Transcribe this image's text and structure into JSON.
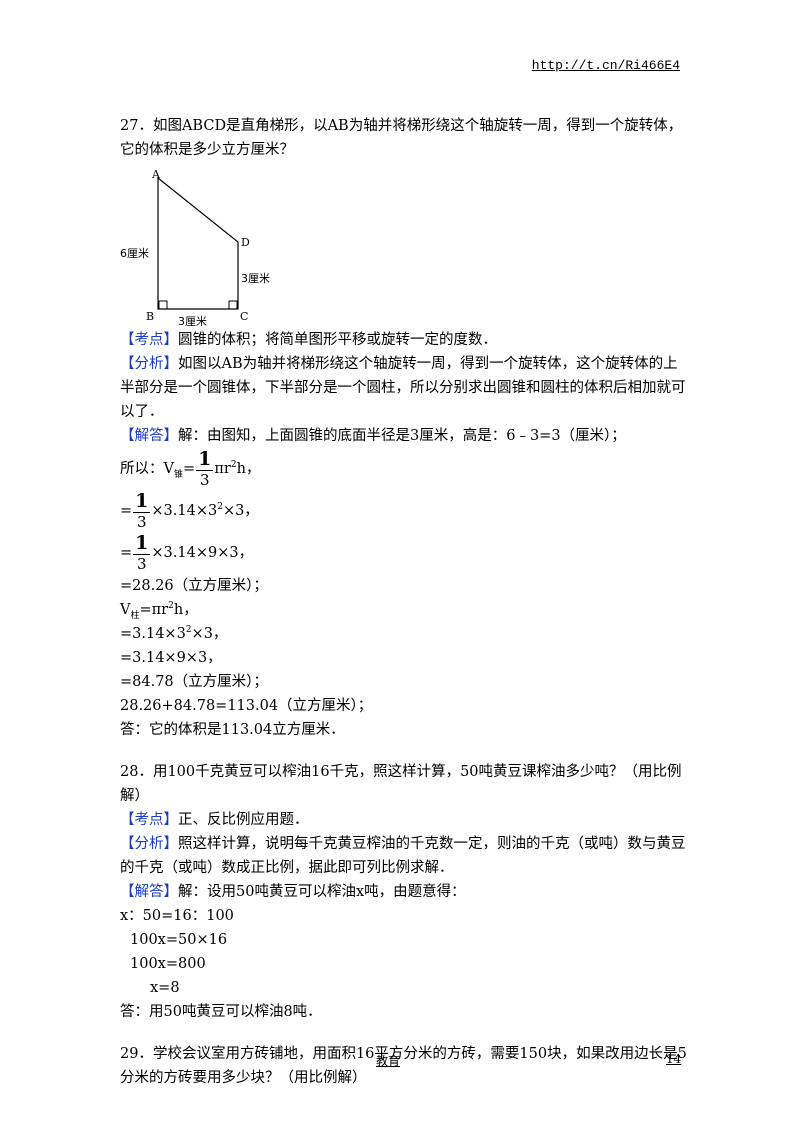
{
  "header": {
    "link": "http://t.cn/Ri466E4"
  },
  "q27": {
    "question_l1": "27．如图ABCD是直角梯形，以AB为轴并将梯形绕这个轴旋转一周，得到一个旋转体，",
    "question_l2": "它的体积是多少立方厘米？",
    "figure": {
      "label_a": "A",
      "label_b": "B",
      "label_c": "C",
      "label_d": "D",
      "label_ab": "6厘米",
      "label_cd": "3厘米",
      "label_bc": "3厘米"
    },
    "kaodian_tag": "【考点】",
    "kaodian": "圆锥的体积；将简单图形平移或旋转一定的度数．",
    "fenxi_tag": "【分析】",
    "fenxi_l1": "如图以AB为轴并将梯形绕这个轴旋转一周，得到一个旋转体，这个旋转体的上",
    "fenxi_l2": "半部分是一个圆锥体，下半部分是一个圆柱，所以分别求出圆锥和圆柱的体积后相加就可",
    "fenxi_l3": "以了．",
    "jieda_tag": "【解答】",
    "jieda": "解：由图知，上面圆锥的底面半径是3厘米，高是：6﹣3=3（厘米）；",
    "s1_prefix": "所以：V",
    "s1_sub": "锥",
    "s1_eq": "=",
    "frac_num": "1",
    "frac_den": "3",
    "s1_tail_a": "πr",
    "s1_tail_b": "h，",
    "s2_prefix": "=",
    "s2_tail_a": "×3.14×3",
    "s2_tail_b": "×3，",
    "s3_prefix": "=",
    "s3_tail": "×3.14×9×3，",
    "s4": "=28.26（立方厘米）；",
    "s5_prefix": "V",
    "s5_sub": "柱",
    "s5_tail_a": "=πr",
    "s5_tail_b": "h，",
    "s6_a": "=3.14×3",
    "s6_b": "×3，",
    "s7": "=3.14×9×3，",
    "s8": "=84.78（立方厘米）；",
    "s9": "28.26+84.78=113.04（立方厘米）；",
    "answer": "答：它的体积是113.04立方厘米．",
    "sup2": "2"
  },
  "q28": {
    "question_l1": "28．用100千克黄豆可以榨油16千克，照这样计算，50吨黄豆课榨油多少吨？（用比例",
    "question_l2": "解）",
    "kaodian_tag": "【考点】",
    "kaodian": "正、反比例应用题．",
    "fenxi_tag": "【分析】",
    "fenxi_l1": "照这样计算，说明每千克黄豆榨油的千克数一定，则油的千克（或吨）数与黄豆",
    "fenxi_l2": "的千克（或吨）数成正比例，据此即可列比例求解．",
    "jieda_tag": "【解答】",
    "jieda": "解：设用50吨黄豆可以榨油x吨，由题意得：",
    "s1": "x：50=16：100",
    "s2": "100x=50×16",
    "s3": "100x=800",
    "s4": "x=8",
    "answer": "答：用50吨黄豆可以榨油8吨．"
  },
  "q29": {
    "question_l1": "29．学校会议室用方砖铺地，用面积16平方分米的方砖，需要150块，如果改用边长是5",
    "question_l2": "分米的方砖要用多少块？（用比例解）"
  },
  "footer": {
    "center": "教育",
    "page": "14"
  }
}
